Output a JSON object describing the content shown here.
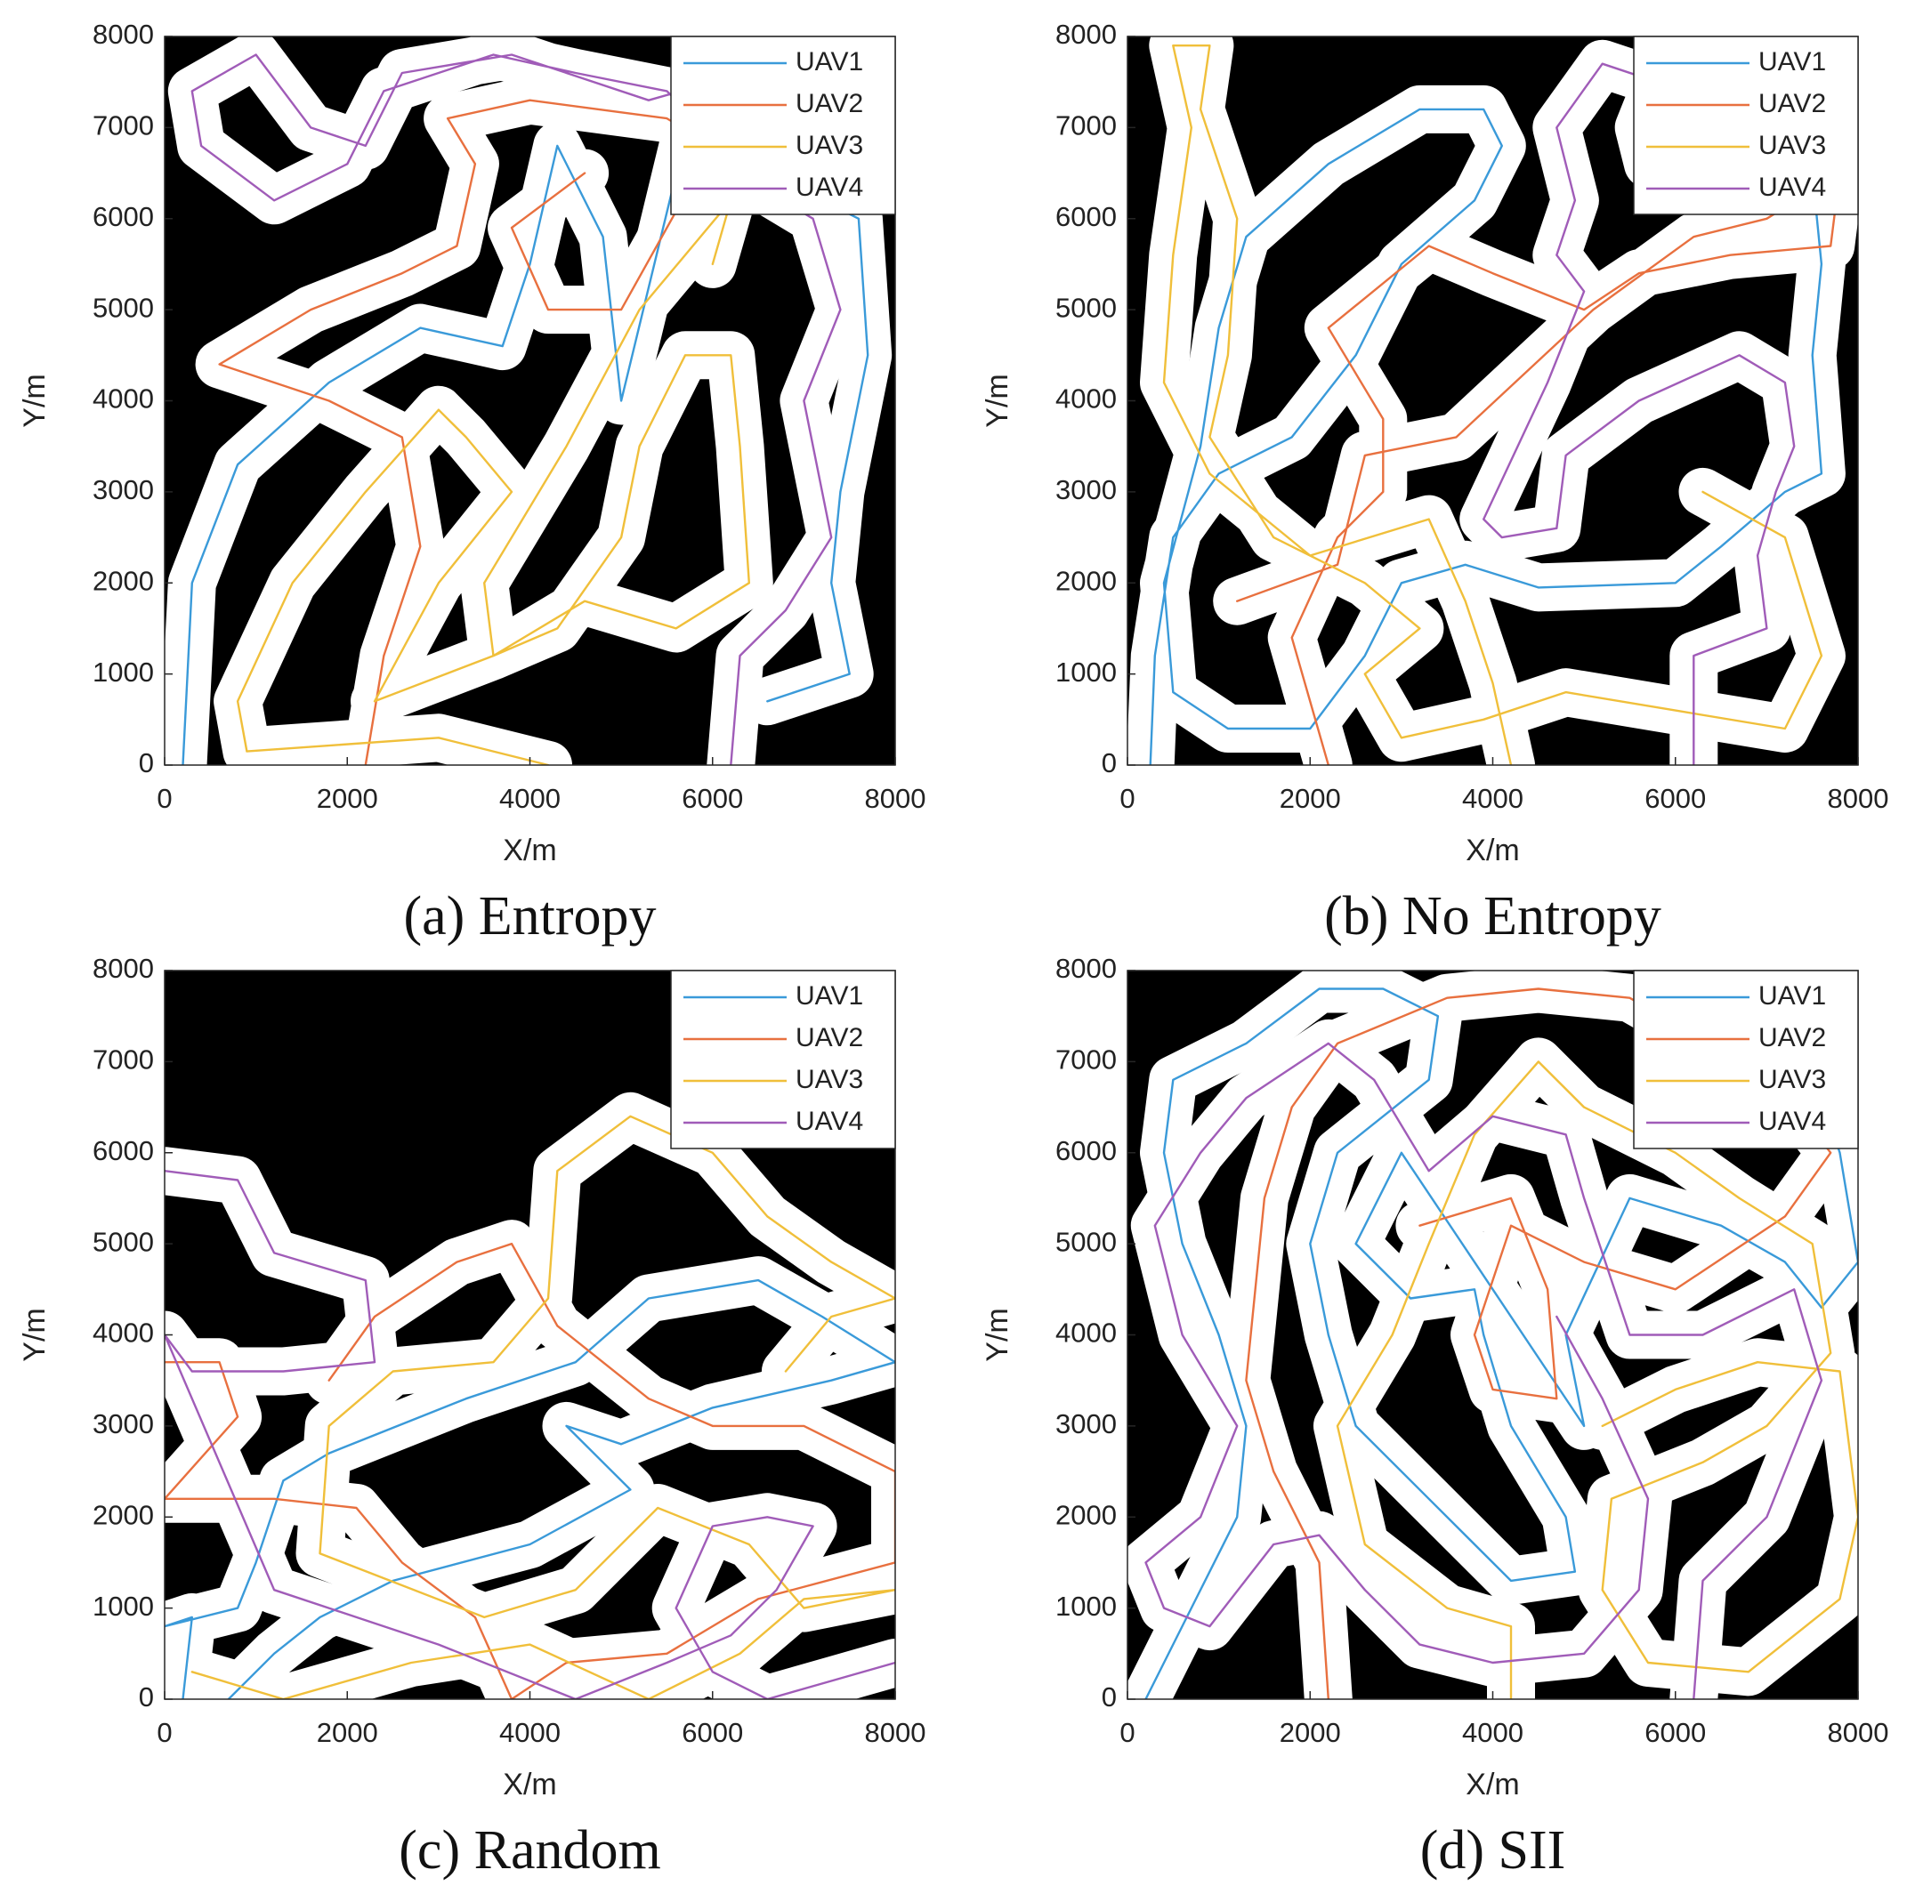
{
  "chart_data": [
    {
      "type": "line",
      "title": "(a) Entropy",
      "xlabel": "X/m",
      "ylabel": "Y/m",
      "xlim": [
        0,
        8000
      ],
      "ylim": [
        0,
        8000
      ],
      "xticks": [
        0,
        2000,
        4000,
        6000,
        8000
      ],
      "yticks": [
        0,
        1000,
        2000,
        3000,
        4000,
        5000,
        6000,
        7000,
        8000
      ],
      "legend": "upper right",
      "background": "#000000",
      "series": [
        {
          "name": "UAV1",
          "color": "#3a9ad9",
          "x": [
            200,
            250,
            300,
            800,
            1800,
            2800,
            3700,
            4000,
            4300,
            4800,
            5000,
            5700,
            6200,
            7000,
            7600,
            7700,
            7400,
            7300,
            7500,
            6600
          ],
          "y": [
            0,
            1000,
            2000,
            3300,
            4200,
            4800,
            4600,
            5500,
            6800,
            5800,
            4000,
            6900,
            6800,
            6300,
            6000,
            4500,
            3000,
            2000,
            1000,
            700
          ]
        },
        {
          "name": "UAV2",
          "color": "#e8703f",
          "x": [
            2200,
            2400,
            2800,
            2600,
            1800,
            600,
            1600,
            2600,
            3200,
            3400,
            3100,
            4000,
            5500,
            6000,
            5000,
            4200,
            3800,
            4600
          ],
          "y": [
            0,
            1200,
            2400,
            3600,
            4000,
            4400,
            5000,
            5400,
            5700,
            6600,
            7100,
            7300,
            7100,
            6800,
            5000,
            5000,
            5900,
            6500
          ]
        },
        {
          "name": "UAV3",
          "color": "#f0bf3a",
          "x": [
            4200,
            3000,
            900,
            800,
            1400,
            2200,
            3000,
            3300,
            3800,
            3000,
            2300,
            3600,
            4300,
            5000,
            5200,
            5700,
            6200,
            6300,
            6400,
            5600,
            4600,
            3600,
            3500,
            4400,
            5200,
            6200,
            6000
          ],
          "y": [
            0,
            300,
            150,
            700,
            2000,
            3000,
            3900,
            3600,
            3000,
            2000,
            700,
            1200,
            1500,
            2500,
            3500,
            4500,
            4500,
            3500,
            2000,
            1500,
            1800,
            1200,
            2000,
            3500,
            5000,
            6200,
            5500
          ]
        },
        {
          "name": "UAV4",
          "color": "#a05cb8",
          "x": [
            6200,
            6300,
            6800,
            7300,
            7000,
            7400,
            7100,
            6600,
            5500,
            4500,
            3600,
            2400,
            2000,
            1200,
            400,
            300,
            1000,
            1600,
            2200,
            2600,
            3800,
            5300,
            6000
          ],
          "y": [
            0,
            1200,
            1700,
            2500,
            4000,
            5000,
            6000,
            6300,
            7400,
            7600,
            7800,
            7400,
            6600,
            6200,
            6800,
            7400,
            7800,
            7000,
            6800,
            7600,
            7800,
            7300,
            7500
          ]
        }
      ]
    },
    {
      "type": "line",
      "title": "(b) No Entropy",
      "xlabel": "X/m",
      "ylabel": "Y/m",
      "xlim": [
        0,
        8000
      ],
      "ylim": [
        0,
        8000
      ],
      "xticks": [
        0,
        2000,
        4000,
        6000,
        8000
      ],
      "yticks": [
        0,
        1000,
        2000,
        3000,
        4000,
        5000,
        6000,
        7000,
        8000
      ],
      "legend": "upper right",
      "background": "#000000",
      "series": [
        {
          "name": "UAV1",
          "color": "#3a9ad9",
          "x": [
            250,
            300,
            500,
            1000,
            1800,
            2500,
            3000,
            3800,
            4100,
            3900,
            3200,
            2200,
            1300,
            1000,
            800,
            400,
            500,
            1100,
            2000,
            2600,
            3000,
            3700,
            4500,
            6000,
            6500,
            7200,
            7600,
            7500,
            7600,
            7500,
            7800
          ],
          "y": [
            0,
            1200,
            2500,
            3200,
            3600,
            4500,
            5500,
            6200,
            6800,
            7200,
            7200,
            6600,
            5800,
            4800,
            3500,
            2000,
            800,
            400,
            400,
            1200,
            2000,
            2200,
            1950,
            2000,
            2400,
            3000,
            3200,
            4500,
            5500,
            6500,
            6500
          ]
        },
        {
          "name": "UAV2",
          "color": "#e8703f",
          "x": [
            2200,
            1800,
            2300,
            2800,
            2800,
            2200,
            3300,
            4000,
            5000,
            5600,
            6600,
            7700,
            7800,
            7000,
            6200,
            5100,
            3600,
            2600,
            2300,
            1200
          ],
          "y": [
            0,
            1400,
            2500,
            3000,
            3800,
            4800,
            5700,
            5400,
            5000,
            5400,
            5600,
            5700,
            6500,
            6000,
            5800,
            5000,
            3600,
            3400,
            2200,
            1800
          ]
        },
        {
          "name": "UAV3",
          "color": "#f0bf3a",
          "x": [
            4200,
            4000,
            3700,
            3300,
            2000,
            900,
            400,
            500,
            700,
            500,
            900,
            800,
            1200,
            1100,
            900,
            1600,
            2600,
            3200,
            2600,
            3000,
            3900,
            4800,
            6000,
            7200,
            7600,
            7200,
            6300
          ],
          "y": [
            0,
            900,
            1800,
            2700,
            2300,
            3200,
            4200,
            5600,
            7000,
            7900,
            7900,
            7200,
            6000,
            4500,
            3600,
            2500,
            2000,
            1500,
            1000,
            300,
            500,
            800,
            600,
            400,
            1200,
            2500,
            3000
          ]
        },
        {
          "name": "UAV4",
          "color": "#a05cb8",
          "x": [
            6200,
            6200,
            7000,
            6900,
            7100,
            7300,
            7200,
            6700,
            5600,
            4800,
            4700,
            4100,
            3900,
            4600,
            5000,
            4700,
            4900,
            4700,
            5200,
            5800,
            5600,
            5700
          ],
          "y": [
            0,
            1200,
            1500,
            2300,
            3000,
            3500,
            4200,
            4500,
            4000,
            3400,
            2600,
            2500,
            2700,
            4200,
            5200,
            5600,
            6200,
            7000,
            7700,
            7500,
            7000,
            6600
          ]
        }
      ]
    },
    {
      "type": "line",
      "title": "(c) Random",
      "xlabel": "X/m",
      "ylabel": "Y/m",
      "xlim": [
        0,
        8000
      ],
      "ylim": [
        0,
        8000
      ],
      "xticks": [
        0,
        2000,
        4000,
        6000,
        8000
      ],
      "yticks": [
        0,
        1000,
        2000,
        3000,
        4000,
        5000,
        6000,
        7000,
        8000
      ],
      "legend": "upper right",
      "background": "#000000",
      "series": [
        {
          "name": "UAV1",
          "color": "#3a9ad9",
          "x": [
            200,
            300,
            0,
            800,
            1000,
            1300,
            1800,
            3300,
            4500,
            5300,
            6500,
            7200,
            8000,
            7300,
            6000,
            5000,
            4400,
            5100,
            4000,
            2500,
            1700,
            1200,
            700
          ],
          "y": [
            0,
            900,
            800,
            1000,
            1500,
            2400,
            2700,
            3300,
            3700,
            4400,
            4600,
            4200,
            3700,
            3500,
            3200,
            2800,
            3000,
            2300,
            1700,
            1300,
            900,
            500,
            0
          ]
        },
        {
          "name": "UAV2",
          "color": "#e8703f",
          "x": [
            0,
            600,
            800,
            0,
            1200,
            2100,
            2600,
            3400,
            3800,
            4400,
            5500,
            6500,
            8000,
            8000,
            7000,
            6000,
            5300,
            4300,
            3800,
            3200,
            2300,
            1800
          ],
          "y": [
            3700,
            3700,
            3100,
            2200,
            2200,
            2100,
            1500,
            900,
            0,
            400,
            500,
            1100,
            1500,
            2500,
            3000,
            3000,
            3300,
            4100,
            5000,
            4800,
            4200,
            3500
          ]
        },
        {
          "name": "UAV3",
          "color": "#f0bf3a",
          "x": [
            300,
            1300,
            2700,
            4000,
            5300,
            6300,
            7000,
            8000,
            7000,
            6400,
            5400,
            4500,
            3500,
            1700,
            1800,
            2500,
            3600,
            4200,
            4300,
            5100,
            6000,
            6600,
            7300,
            8000,
            7300,
            6800
          ],
          "y": [
            300,
            0,
            400,
            600,
            0,
            500,
            1100,
            1200,
            1000,
            1700,
            2100,
            1200,
            900,
            1600,
            3000,
            3600,
            3700,
            4400,
            5800,
            6400,
            6000,
            5300,
            4800,
            4400,
            4200,
            3600
          ]
        },
        {
          "name": "UAV4",
          "color": "#a05cb8",
          "x": [
            0,
            800,
            1200,
            2200,
            2300,
            1300,
            300,
            0,
            1200,
            3000,
            4500,
            5500,
            6200,
            6700,
            7100,
            6600,
            6000,
            5600,
            6000,
            6600,
            7300,
            8000
          ],
          "y": [
            5800,
            5700,
            4900,
            4600,
            3700,
            3600,
            3600,
            4000,
            1200,
            600,
            0,
            400,
            700,
            1200,
            1900,
            2000,
            1900,
            1000,
            300,
            0,
            200,
            400
          ]
        }
      ]
    },
    {
      "type": "line",
      "title": "(d) SII",
      "xlabel": "X/m",
      "ylabel": "Y/m",
      "xlim": [
        0,
        8000
      ],
      "ylim": [
        0,
        8000
      ],
      "xticks": [
        0,
        2000,
        4000,
        6000,
        8000
      ],
      "yticks": [
        0,
        1000,
        2000,
        3000,
        4000,
        5000,
        6000,
        7000,
        8000
      ],
      "legend": "upper right",
      "background": "#000000",
      "series": [
        {
          "name": "UAV1",
          "color": "#3a9ad9",
          "x": [
            200,
            700,
            1200,
            1300,
            1000,
            600,
            400,
            500,
            1300,
            2100,
            2800,
            3400,
            3300,
            2300,
            2000,
            2200,
            2500,
            3300,
            4200,
            4900,
            4800,
            4200,
            3900,
            3800,
            3100,
            2500,
            3000,
            5000,
            4800,
            5500,
            6500,
            7200,
            7600,
            8000,
            7800,
            7400
          ],
          "y": [
            0,
            1000,
            2000,
            3000,
            4000,
            5000,
            6000,
            6800,
            7200,
            7800,
            7800,
            7500,
            6800,
            6000,
            5000,
            4000,
            3000,
            2200,
            1300,
            1400,
            2000,
            3000,
            4000,
            4500,
            4400,
            5000,
            6000,
            3000,
            4000,
            5500,
            5200,
            4800,
            4300,
            4800,
            6000,
            7200
          ]
        },
        {
          "name": "UAV2",
          "color": "#e8703f",
          "x": [
            2200,
            2100,
            1600,
            1300,
            1500,
            1800,
            2300,
            3500,
            4500,
            5500,
            6200,
            7000,
            7700,
            7200,
            6000,
            5000,
            4200,
            3800,
            4000,
            4700,
            4600,
            4200,
            3200
          ],
          "y": [
            0,
            1500,
            2500,
            3500,
            5500,
            6500,
            7200,
            7700,
            7800,
            7700,
            7300,
            6900,
            6000,
            5300,
            4500,
            4800,
            5200,
            4000,
            3400,
            3300,
            4500,
            5500,
            5200
          ]
        },
        {
          "name": "UAV3",
          "color": "#f0bf3a",
          "x": [
            4200,
            4200,
            3500,
            2600,
            2300,
            2900,
            3300,
            3800,
            4500,
            5000,
            6000,
            6700,
            7500,
            7700,
            7000,
            6300,
            5300,
            5200,
            5700,
            6800,
            7800,
            8000,
            7800,
            6900,
            6000,
            5200
          ],
          "y": [
            0,
            800,
            1000,
            1700,
            3000,
            4000,
            5000,
            6200,
            7000,
            6500,
            6000,
            5500,
            5000,
            3800,
            3000,
            2600,
            2200,
            1200,
            400,
            300,
            1100,
            2000,
            3600,
            3700,
            3400,
            3000
          ]
        },
        {
          "name": "UAV4",
          "color": "#a05cb8",
          "x": [
            6200,
            6300,
            7000,
            7600,
            7300,
            6300,
            5500,
            5000,
            4800,
            4000,
            3300,
            2700,
            2200,
            1300,
            800,
            300,
            600,
            1200,
            800,
            200,
            400,
            900,
            1600,
            2100,
            2600,
            3200,
            4000,
            5000,
            5600,
            5700,
            5200,
            4700
          ],
          "y": [
            0,
            1300,
            2000,
            3500,
            4500,
            4000,
            4000,
            5500,
            6200,
            6400,
            5800,
            6800,
            7200,
            6600,
            6000,
            5200,
            4000,
            3000,
            2000,
            1500,
            1000,
            800,
            1700,
            1800,
            1200,
            600,
            400,
            500,
            1200,
            2200,
            3300,
            4200
          ]
        }
      ]
    }
  ]
}
